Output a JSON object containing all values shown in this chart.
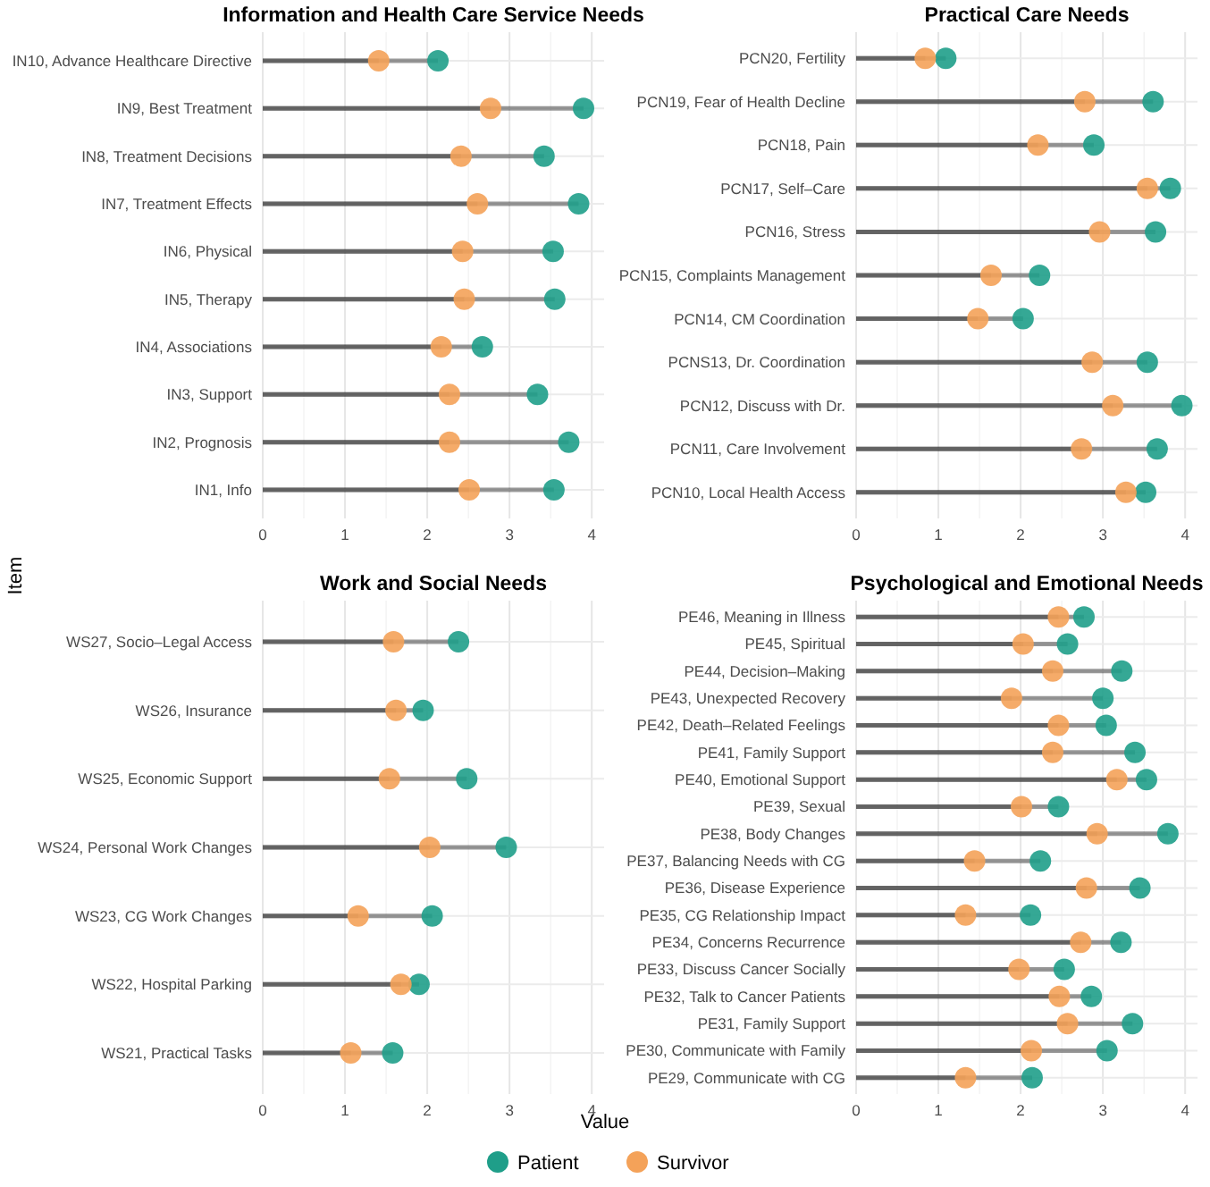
{
  "chart_data": [
    {
      "type": "lollipop",
      "title": "Information and Health Care Service Needs",
      "xlabel": "Value",
      "ylabel": "Item",
      "orientation": "horizontal",
      "grid": true,
      "legend": "bottom",
      "marker": "circle",
      "xlim": [
        0,
        4.15
      ],
      "xticks": [
        0,
        1,
        2,
        3,
        4
      ],
      "categories": [
        "IN10, Advance Healthcare Directive",
        "IN9, Best Treatment",
        "IN8, Treatment Decisions",
        "IN7, Treatment Effects",
        "IN6, Physical",
        "IN5, Therapy",
        "IN4, Associations",
        "IN3, Support",
        "IN2, Prognosis",
        "IN1, Info"
      ],
      "series": [
        {
          "name": "Patient",
          "color": "#1f9e89",
          "values": [
            2.13,
            3.9,
            3.42,
            3.84,
            3.53,
            3.55,
            2.67,
            3.34,
            3.72,
            3.54
          ]
        },
        {
          "name": "Survivor",
          "color": "#f4a259",
          "values": [
            1.41,
            2.77,
            2.41,
            2.61,
            2.43,
            2.45,
            2.17,
            2.27,
            2.27,
            2.51
          ]
        }
      ]
    },
    {
      "type": "lollipop",
      "title": "Practical Care Needs",
      "orientation": "horizontal",
      "grid": true,
      "marker": "circle",
      "xlim": [
        0,
        4.15
      ],
      "xticks": [
        0,
        1,
        2,
        3,
        4
      ],
      "categories": [
        "PCN20, Fertility",
        "PCN19, Fear of Health Decline",
        "PCN18, Pain",
        "PCN17, Self–Care",
        "PCN16, Stress",
        "PCN15, Complaints Management",
        "PCN14, CM Coordination",
        "PCNS13, Dr. Coordination",
        "PCN12, Discuss with Dr.",
        "PCN11, Care Involvement",
        "PCN10, Local Health Access"
      ],
      "series": [
        {
          "color": "#1f9e89",
          "values": [
            1.09,
            3.61,
            2.89,
            3.82,
            3.64,
            2.23,
            2.03,
            3.54,
            3.96,
            3.66,
            3.52
          ]
        },
        {
          "color": "#f4a259",
          "values": [
            0.84,
            2.78,
            2.21,
            3.54,
            2.96,
            1.64,
            1.48,
            2.87,
            3.12,
            2.74,
            3.28
          ]
        }
      ]
    },
    {
      "type": "lollipop",
      "title": "Work and Social Needs",
      "orientation": "horizontal",
      "grid": true,
      "marker": "circle",
      "xlim": [
        0,
        4.15
      ],
      "xticks": [
        0,
        1,
        2,
        3,
        4
      ],
      "categories": [
        "WS27, Socio–Legal Access",
        "WS26, Insurance",
        "WS25, Economic Support",
        "WS24, Personal Work Changes",
        "WS23, CG Work Changes",
        "WS22, Hospital Parking",
        "WS21, Practical Tasks"
      ],
      "series": [
        {
          "color": "#1f9e89",
          "values": [
            2.38,
            1.95,
            2.48,
            2.96,
            2.06,
            1.9,
            1.58
          ]
        },
        {
          "color": "#f4a259",
          "values": [
            1.59,
            1.62,
            1.54,
            2.03,
            1.16,
            1.68,
            1.07
          ]
        }
      ]
    },
    {
      "type": "lollipop",
      "title": "Psychological and Emotional Needs",
      "orientation": "horizontal",
      "grid": true,
      "marker": "circle",
      "xlim": [
        0,
        4.15
      ],
      "xticks": [
        0,
        1,
        2,
        3,
        4
      ],
      "categories": [
        "PE46, Meaning in Illness",
        "PE45, Spiritual",
        "PE44, Decision–Making",
        "PE43, Unexpected Recovery",
        "PE42, Death–Related Feelings",
        "PE41, Family Support",
        "PE40, Emotional Support",
        "PE39, Sexual",
        "PE38, Body Changes",
        "PE37, Balancing Needs with CG",
        "PE36, Disease Experience",
        "PE35, CG Relationship Impact",
        "PE34, Concerns Recurrence",
        "PE33, Discuss Cancer Socially",
        "PE32, Talk to Cancer Patients",
        "PE31, Family Support",
        "PE30, Communicate with Family",
        "PE29, Communicate with CG"
      ],
      "series": [
        {
          "color": "#1f9e89",
          "values": [
            2.77,
            2.57,
            3.23,
            3.0,
            3.04,
            3.39,
            3.53,
            2.46,
            3.79,
            2.24,
            3.45,
            2.12,
            3.22,
            2.53,
            2.86,
            3.36,
            3.05,
            2.14
          ]
        },
        {
          "color": "#f4a259",
          "values": [
            2.46,
            2.03,
            2.39,
            1.89,
            2.46,
            2.39,
            3.17,
            2.01,
            2.93,
            1.44,
            2.8,
            1.33,
            2.73,
            1.98,
            2.47,
            2.57,
            2.13,
            1.33
          ]
        }
      ]
    }
  ]
}
